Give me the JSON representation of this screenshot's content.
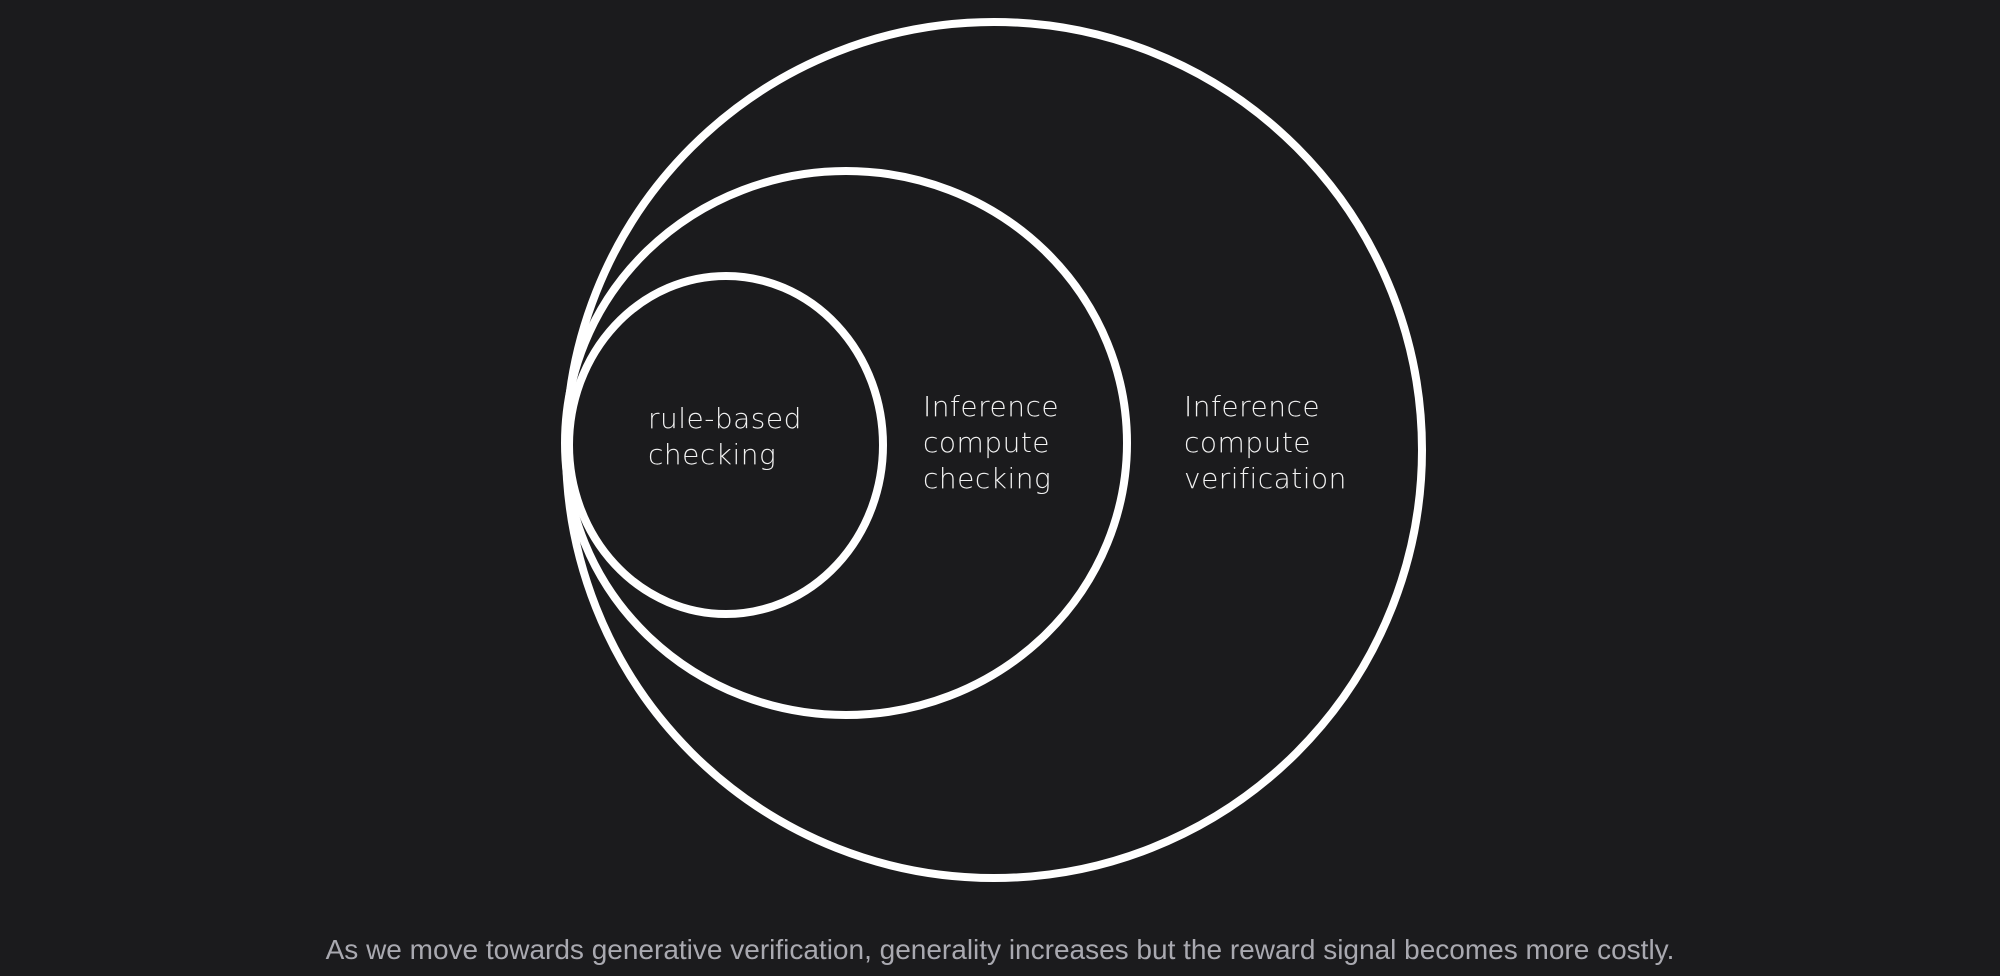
{
  "colors": {
    "background": "#1b1b1d",
    "ring_stroke": "#ffffff",
    "label_text": "#f2f2f2",
    "caption_text": "#a9a9b0"
  },
  "diagram": {
    "rings": [
      {
        "id": "rule-based",
        "label_lines": [
          "rule-based",
          "checking"
        ]
      },
      {
        "id": "inference-checking",
        "label_lines": [
          "Inference",
          "compute",
          "checking"
        ]
      },
      {
        "id": "inference-verification",
        "label_lines": [
          "Inference",
          "compute",
          "verification"
        ]
      }
    ]
  },
  "caption": "As we move towards generative verification, generality increases but the reward signal becomes more costly."
}
